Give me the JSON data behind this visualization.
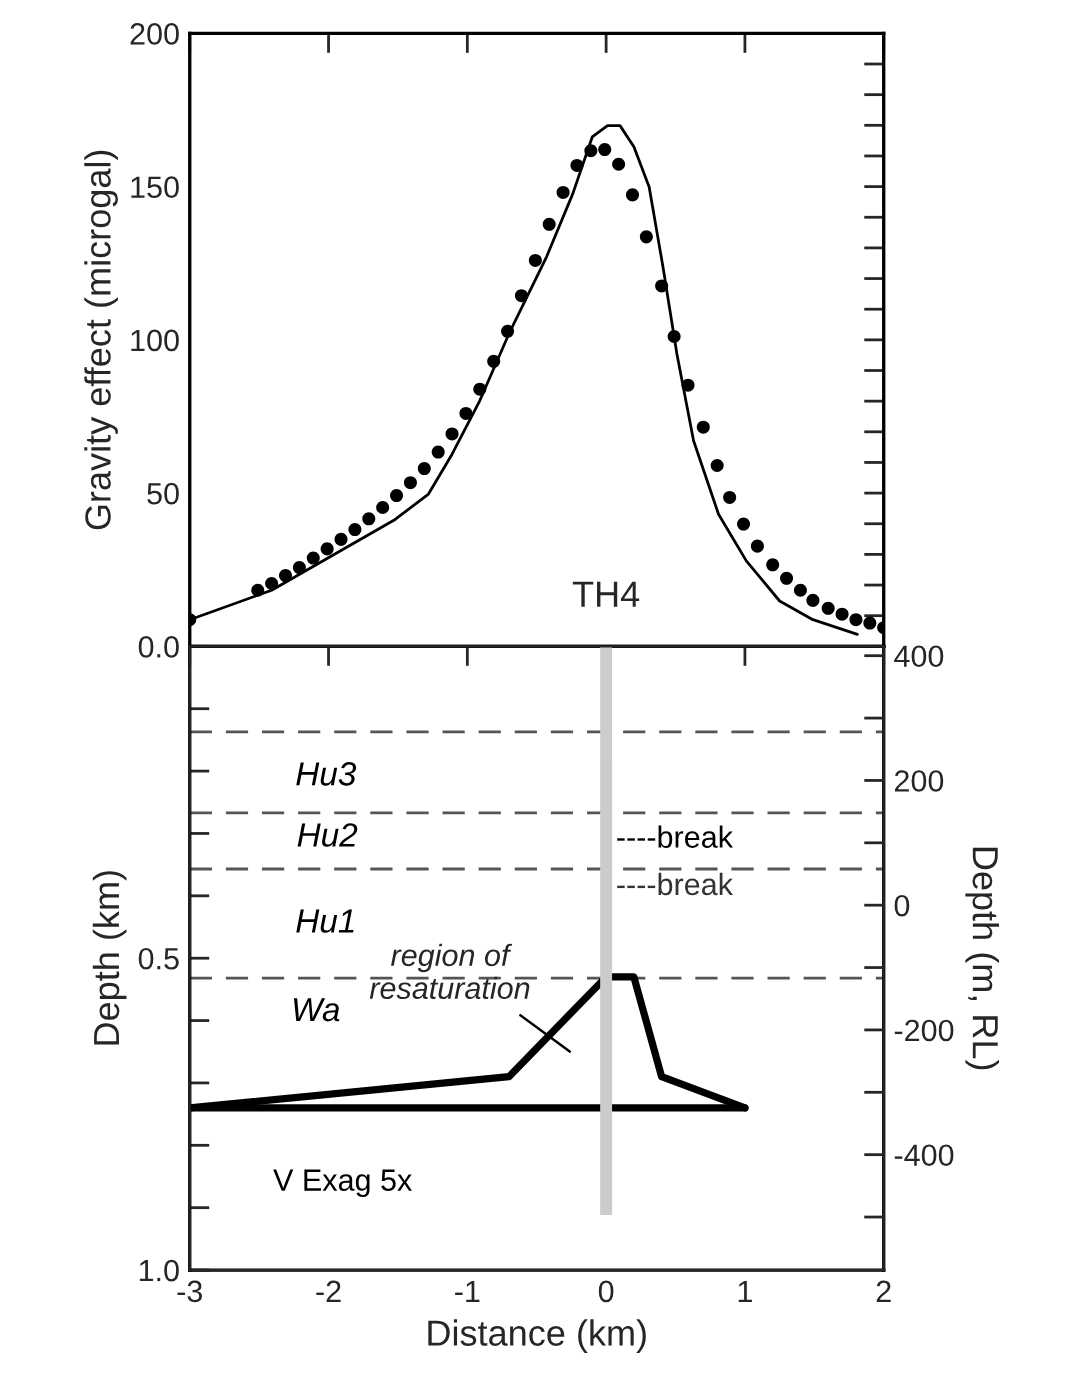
{
  "chart_data": [
    {
      "type": "scatter",
      "title": "TH4",
      "ylabel": "Gravity effect (microgal)",
      "xlim": [
        -3,
        2
      ],
      "xticks": [
        -3,
        -2,
        -1,
        0,
        1,
        2
      ],
      "ylim": [
        0,
        200
      ],
      "yticks": [
        {
          "value": 0,
          "label": "0.0"
        },
        {
          "value": 10,
          "label": null
        },
        {
          "value": 20,
          "label": null
        },
        {
          "value": 30,
          "label": null
        },
        {
          "value": 40,
          "label": null
        },
        50,
        {
          "value": 60,
          "label": null
        },
        {
          "value": 70,
          "label": null
        },
        {
          "value": 80,
          "label": null
        },
        {
          "value": 90,
          "label": null
        },
        100,
        {
          "value": 110,
          "label": null
        },
        {
          "value": 120,
          "label": null
        },
        {
          "value": 130,
          "label": null
        },
        {
          "value": 140,
          "label": null
        },
        150,
        {
          "value": 160,
          "label": null
        },
        {
          "value": 170,
          "label": null
        },
        {
          "value": 180,
          "label": null
        },
        {
          "value": 190,
          "label": null
        },
        200
      ],
      "tick_labels": "y",
      "series": [
        {
          "type": "line",
          "color": "#000000",
          "line_style": "solid",
          "x": [
            -3.0,
            -2.41,
            -1.52,
            -1.28,
            -1.11,
            -0.91,
            -0.7,
            -0.43,
            -0.24,
            -0.1,
            0.01,
            0.1,
            0.2,
            0.31,
            0.41,
            0.51,
            0.63,
            0.81,
            1.01,
            1.25,
            1.49,
            1.81
          ],
          "values": [
            8.7,
            18.3,
            41.4,
            49.7,
            62.7,
            80.2,
            102,
            127,
            147.7,
            166.2,
            169.9,
            169.9,
            163,
            149.9,
            123.7,
            95.4,
            67.1,
            43.1,
            27.9,
            14.8,
            8.7,
            3.9
          ]
        },
        {
          "color": "#000000",
          "marker": "circle",
          "x": [
            -3.0,
            -2.51,
            -2.41,
            -2.31,
            -2.21,
            -2.11,
            -2.01,
            -1.91,
            -1.81,
            -1.71,
            -1.61,
            -1.51,
            -1.41,
            -1.31,
            -1.21,
            -1.11,
            -1.01,
            -0.91,
            -0.81,
            -0.71,
            -0.61,
            -0.51,
            -0.41,
            -0.31,
            -0.21,
            -0.11,
            -0.01,
            0.09,
            0.19,
            0.29,
            0.4,
            0.49,
            0.59,
            0.7,
            0.8,
            0.89,
            0.99,
            1.09,
            1.2,
            1.3,
            1.4,
            1.49,
            1.6,
            1.7,
            1.8,
            1.9,
            2.0
          ],
          "values": [
            8.7,
            18.3,
            20.5,
            23.1,
            25.7,
            28.8,
            31.8,
            34.9,
            38.1,
            41.6,
            45.3,
            49.2,
            53.4,
            58.0,
            63.4,
            69.3,
            76.0,
            83.9,
            93.0,
            102.8,
            114.4,
            125.9,
            137.7,
            148.1,
            156.9,
            161.7,
            162.1,
            157.3,
            147.3,
            133.6,
            117.6,
            101.1,
            85.2,
            71.5,
            59.0,
            48.6,
            39.9,
            32.7,
            26.6,
            22.2,
            18.3,
            15.0,
            12.4,
            10.5,
            8.7,
            7.6,
            6.1
          ]
        }
      ]
    },
    {
      "type": "line",
      "xlabel": "Distance (km)",
      "ylabel": "Depth (km)",
      "y2label": "Depth (m, RL)",
      "xlim": [
        -3,
        2
      ],
      "xticks": [
        -3,
        -2,
        -1,
        0,
        1,
        2
      ],
      "ylim": [
        1.0,
        0.0
      ],
      "yticks": [
        {
          "value": 0,
          "label": null
        },
        {
          "value": 0.1,
          "label": null
        },
        {
          "value": 0.2,
          "label": null
        },
        {
          "value": 0.3,
          "label": null
        },
        {
          "value": 0.4,
          "label": null
        },
        0.5,
        {
          "value": 0.6,
          "label": null
        },
        {
          "value": 0.7,
          "label": null
        },
        {
          "value": 0.8,
          "label": null
        },
        {
          "value": 0.9,
          "label": null
        },
        {
          "value": 1.0,
          "label": "1.0"
        }
      ],
      "y2lim": [
        -585,
        415
      ],
      "y2ticks": [
        400,
        {
          "value": 300,
          "label": null
        },
        200,
        {
          "value": 100,
          "label": null
        },
        0,
        {
          "value": -100,
          "label": null
        },
        -200,
        {
          "value": -300,
          "label": null
        },
        -400,
        {
          "value": -500,
          "label": null
        }
      ],
      "series": [
        {
          "color": "#000000",
          "line_style": "solid",
          "x": [
            -3,
            -0.7,
            0,
            0.2,
            0.4,
            1
          ],
          "values": [
            0.74,
            0.69,
            0.53,
            0.53,
            0.69,
            0.74
          ]
        },
        {
          "color": "#000000",
          "line_style": "solid",
          "x": [
            -3,
            1
          ],
          "values": [
            0.74,
            0.74
          ]
        },
        {
          "type": "bar",
          "color": "#cccccc",
          "x": [
            0
          ],
          "base": [
            0
          ],
          "values": [
            0.91
          ]
        }
      ],
      "ref_lines": [
        {
          "axis": "y",
          "value": 0.137,
          "color": "#555555",
          "line_style": "dashed"
        },
        {
          "axis": "y",
          "value": 0.267,
          "color": "#555555",
          "line_style": "dashed"
        },
        {
          "axis": "y",
          "value": 0.357,
          "color": "#555555",
          "line_style": "dashed"
        },
        {
          "axis": "y",
          "value": 0.532,
          "color": "#555555",
          "line_style": "dashed"
        }
      ],
      "annotations": [
        "Hu3",
        "Hu2",
        "Hu1",
        "Wa",
        "region of\nresaturation",
        "----break",
        "----break",
        "V Exag 5x"
      ]
    }
  ]
}
